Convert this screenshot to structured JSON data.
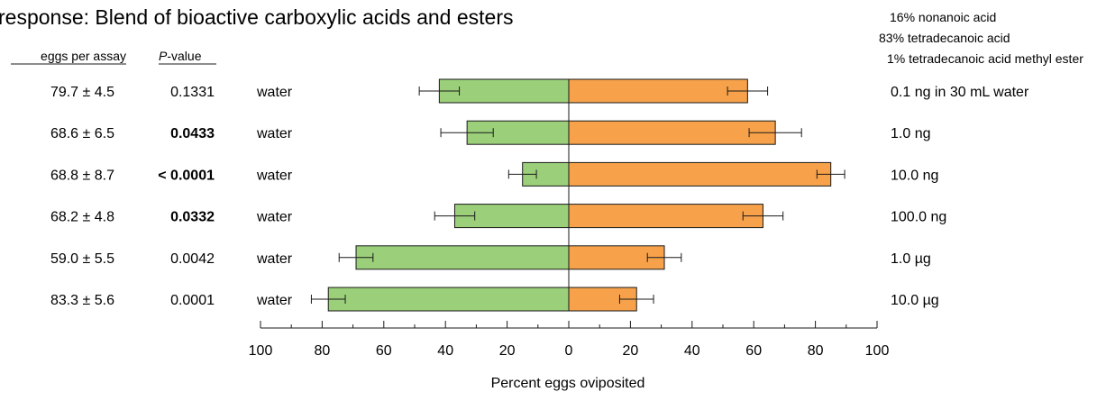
{
  "chart_data": {
    "type": "bar",
    "orientation": "horizontal-diverging",
    "title": "response: Blend of bioactive carboxylic acids and esters",
    "xlabel": "Percent eggs oviposited",
    "xlim": [
      -100,
      100
    ],
    "x_ticks": [
      "100",
      "80",
      "60",
      "40",
      "20",
      "0",
      "20",
      "40",
      "60",
      "80",
      "100"
    ],
    "table_headers": {
      "eggs": "eggs per assay",
      "p_italic": "P",
      "p_rest": "-value"
    },
    "blend_composition": [
      "16% nonanoic acid",
      "83% tetradecanoic acid",
      "1% tetradecanoic acid methyl ester"
    ],
    "rows": [
      {
        "eggs": "79.7 ± 4.5",
        "p": "0.1331",
        "p_bold": false,
        "control": "water",
        "dose": "0.1  ng in 30 mL water",
        "control_value": 42,
        "control_err": 6.5,
        "treatment_value": 58,
        "treatment_err": 6.5
      },
      {
        "eggs": "68.6 ± 6.5",
        "p": "0.0433",
        "p_bold": true,
        "control": "water",
        "dose": "1.0  ng",
        "control_value": 33,
        "control_err": 8.5,
        "treatment_value": 67,
        "treatment_err": 8.5
      },
      {
        "eggs": "68.8 ± 8.7",
        "p": "< 0.0001",
        "p_bold": true,
        "control": "water",
        "dose": "10.0  ng",
        "control_value": 15,
        "control_err": 4.5,
        "treatment_value": 85,
        "treatment_err": 4.5
      },
      {
        "eggs": "68.2 ± 4.8",
        "p": "0.0332",
        "p_bold": true,
        "control": "water",
        "dose": "100.0  ng",
        "control_value": 37,
        "control_err": 6.5,
        "treatment_value": 63,
        "treatment_err": 6.5
      },
      {
        "eggs": "59.0 ± 5.5",
        "p": "0.0042",
        "p_bold": false,
        "control": "water",
        "dose": "1.0  µg",
        "control_value": 69,
        "control_err": 5.5,
        "treatment_value": 31,
        "treatment_err": 5.5
      },
      {
        "eggs": "83.3 ± 5.6",
        "p": "0.0001",
        "p_bold": false,
        "control": "water",
        "dose": "10.0  µg",
        "control_value": 78,
        "control_err": 5.5,
        "treatment_value": 22,
        "treatment_err": 5.5
      }
    ],
    "colors": {
      "control": "#9bcf7a",
      "treatment": "#f7a24b",
      "stroke": "#1a1a1a"
    },
    "grid": false
  }
}
